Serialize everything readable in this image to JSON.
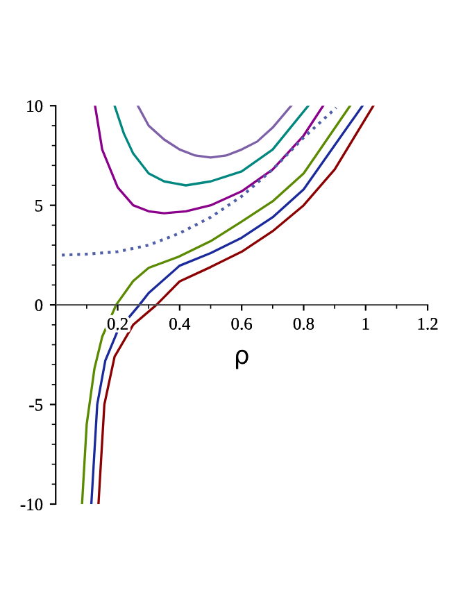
{
  "chart_data": {
    "type": "line",
    "xlabel": "ρ",
    "xlim": [
      0,
      1.2
    ],
    "ylim": [
      -10,
      10
    ],
    "xticks": [
      0.2,
      0.4,
      0.6,
      0.8,
      1,
      1.2
    ],
    "yticks": [
      -10,
      -5,
      0,
      5,
      10
    ],
    "grid": false,
    "marker": "none",
    "series": [
      {
        "color": "#7d60a8",
        "x": [
          0.265,
          0.3,
          0.35,
          0.4,
          0.45,
          0.5,
          0.55,
          0.6,
          0.65,
          0.7,
          0.76
        ],
        "values": [
          10,
          9.0,
          8.3,
          7.8,
          7.5,
          7.4,
          7.5,
          7.8,
          8.2,
          8.9,
          10
        ]
      },
      {
        "color": "#00877f",
        "x": [
          0.19,
          0.22,
          0.25,
          0.3,
          0.35,
          0.42,
          0.5,
          0.6,
          0.7,
          0.815
        ],
        "values": [
          10,
          8.6,
          7.6,
          6.6,
          6.2,
          6.0,
          6.2,
          6.7,
          7.8,
          10
        ]
      },
      {
        "color": "#8b008b",
        "x": [
          0.127,
          0.15,
          0.2,
          0.25,
          0.3,
          0.35,
          0.42,
          0.5,
          0.6,
          0.7,
          0.8,
          0.863
        ],
        "values": [
          10,
          7.8,
          5.9,
          5.0,
          4.7,
          4.6,
          4.7,
          5.0,
          5.7,
          6.8,
          8.5,
          10
        ]
      },
      {
        "color": "#4f5fa8",
        "line_style": "dotted",
        "x": [
          0.02,
          0.1,
          0.2,
          0.3,
          0.4,
          0.5,
          0.6,
          0.7,
          0.8,
          0.905
        ],
        "values": [
          2.5,
          2.55,
          2.67,
          3.0,
          3.6,
          4.4,
          5.45,
          6.8,
          8.4,
          9.9
        ]
      },
      {
        "color": "#5a8a00",
        "x": [
          0.085,
          0.1,
          0.125,
          0.15,
          0.195,
          0.25,
          0.3,
          0.4,
          0.5,
          0.6,
          0.7,
          0.8,
          0.95
        ],
        "values": [
          -10,
          -6,
          -3.2,
          -1.6,
          0,
          1.2,
          1.86,
          2.44,
          3.2,
          4.18,
          5.2,
          6.6,
          10
        ]
      },
      {
        "color": "#1a2a9a",
        "x": [
          0.115,
          0.134,
          0.16,
          0.2,
          0.27,
          0.3,
          0.4,
          0.5,
          0.6,
          0.7,
          0.8,
          0.99
        ],
        "values": [
          -10,
          -5,
          -2.8,
          -1.3,
          0,
          0.6,
          1.97,
          2.6,
          3.37,
          4.4,
          5.8,
          10
        ]
      },
      {
        "color": "#8b0000",
        "x": [
          0.138,
          0.157,
          0.19,
          0.25,
          0.325,
          0.4,
          0.5,
          0.6,
          0.7,
          0.8,
          0.9,
          1.025
        ],
        "values": [
          -10,
          -5,
          -2.6,
          -1.0,
          0,
          1.18,
          1.9,
          2.67,
          3.7,
          5.0,
          6.8,
          10
        ]
      }
    ]
  }
}
